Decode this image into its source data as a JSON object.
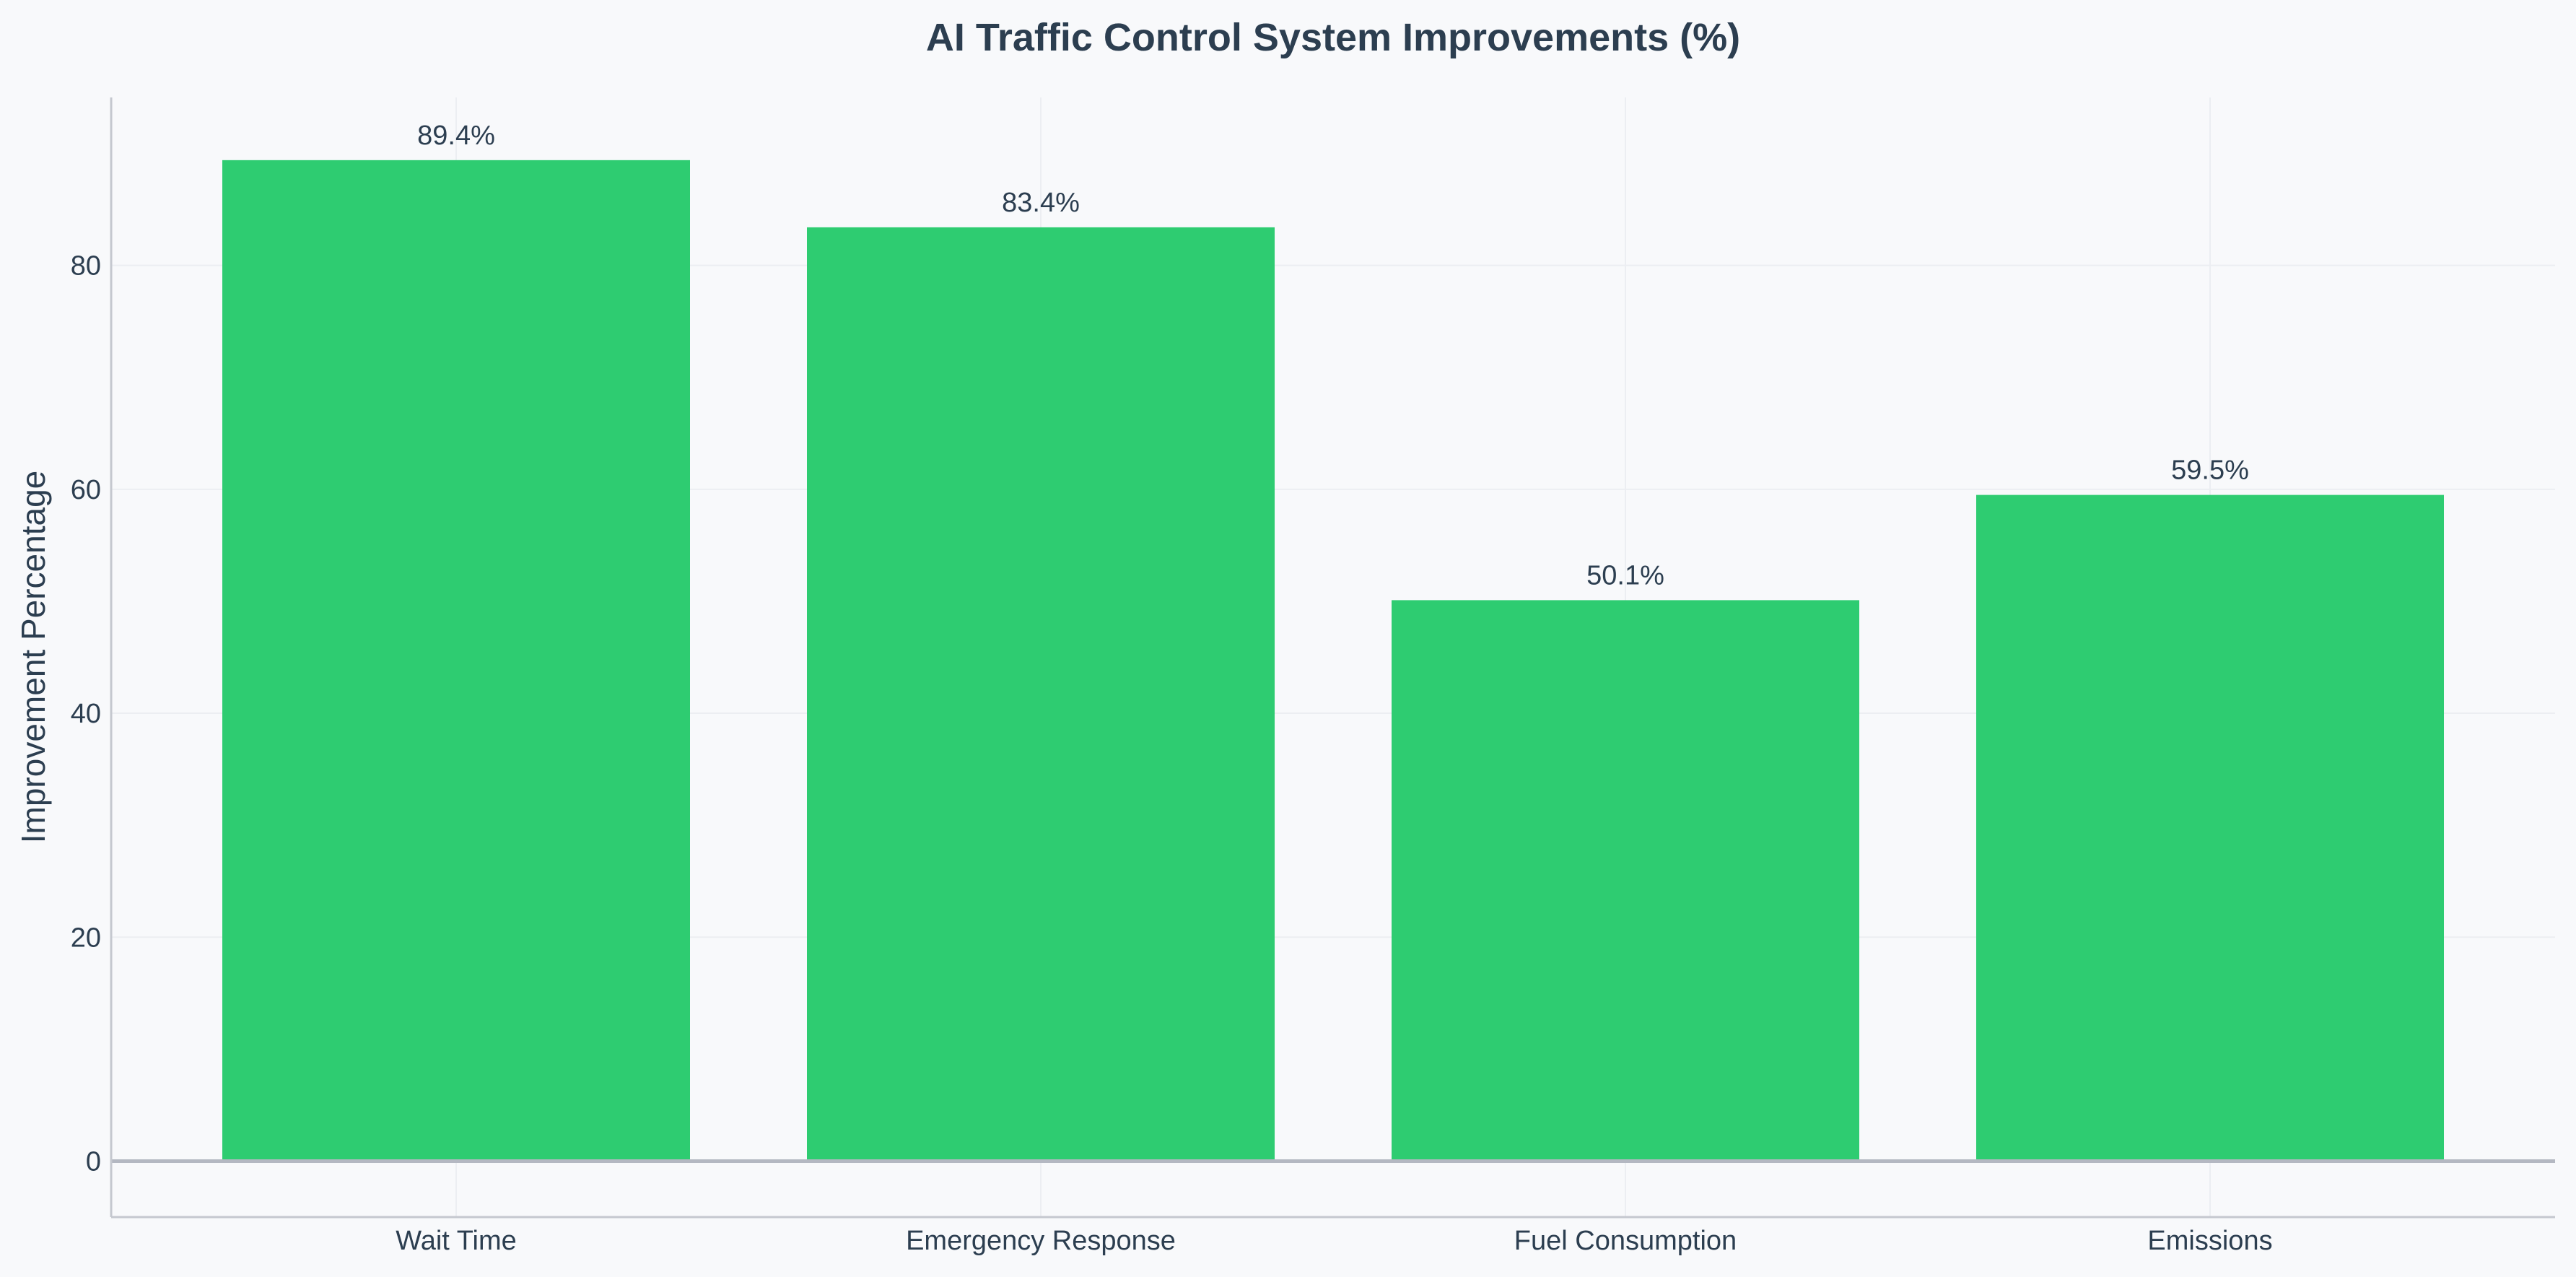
{
  "chart_data": {
    "type": "bar",
    "title": "AI Traffic Control System Improvements (%)",
    "xlabel": "",
    "ylabel": "Improvement Percentage",
    "categories": [
      "Wait Time",
      "Emergency Response",
      "Fuel Consumption",
      "Emissions"
    ],
    "values": [
      89.4,
      83.4,
      50.1,
      59.5
    ],
    "value_labels": [
      "89.4%",
      "83.4%",
      "50.1%",
      "59.5%"
    ],
    "ylim": [
      -5,
      95
    ],
    "yticks": [
      0,
      20,
      40,
      60,
      80
    ],
    "ytick_labels": [
      "0",
      "20",
      "40",
      "60",
      "80"
    ],
    "grid": true,
    "legend": "none"
  },
  "colors": {
    "background": "#f8f9fb",
    "bar": "#2ecc71",
    "text": "#2c3e50",
    "axis": "#c5c8cf",
    "zero_line": "#b4b8c2",
    "grid": "#eceef2"
  }
}
